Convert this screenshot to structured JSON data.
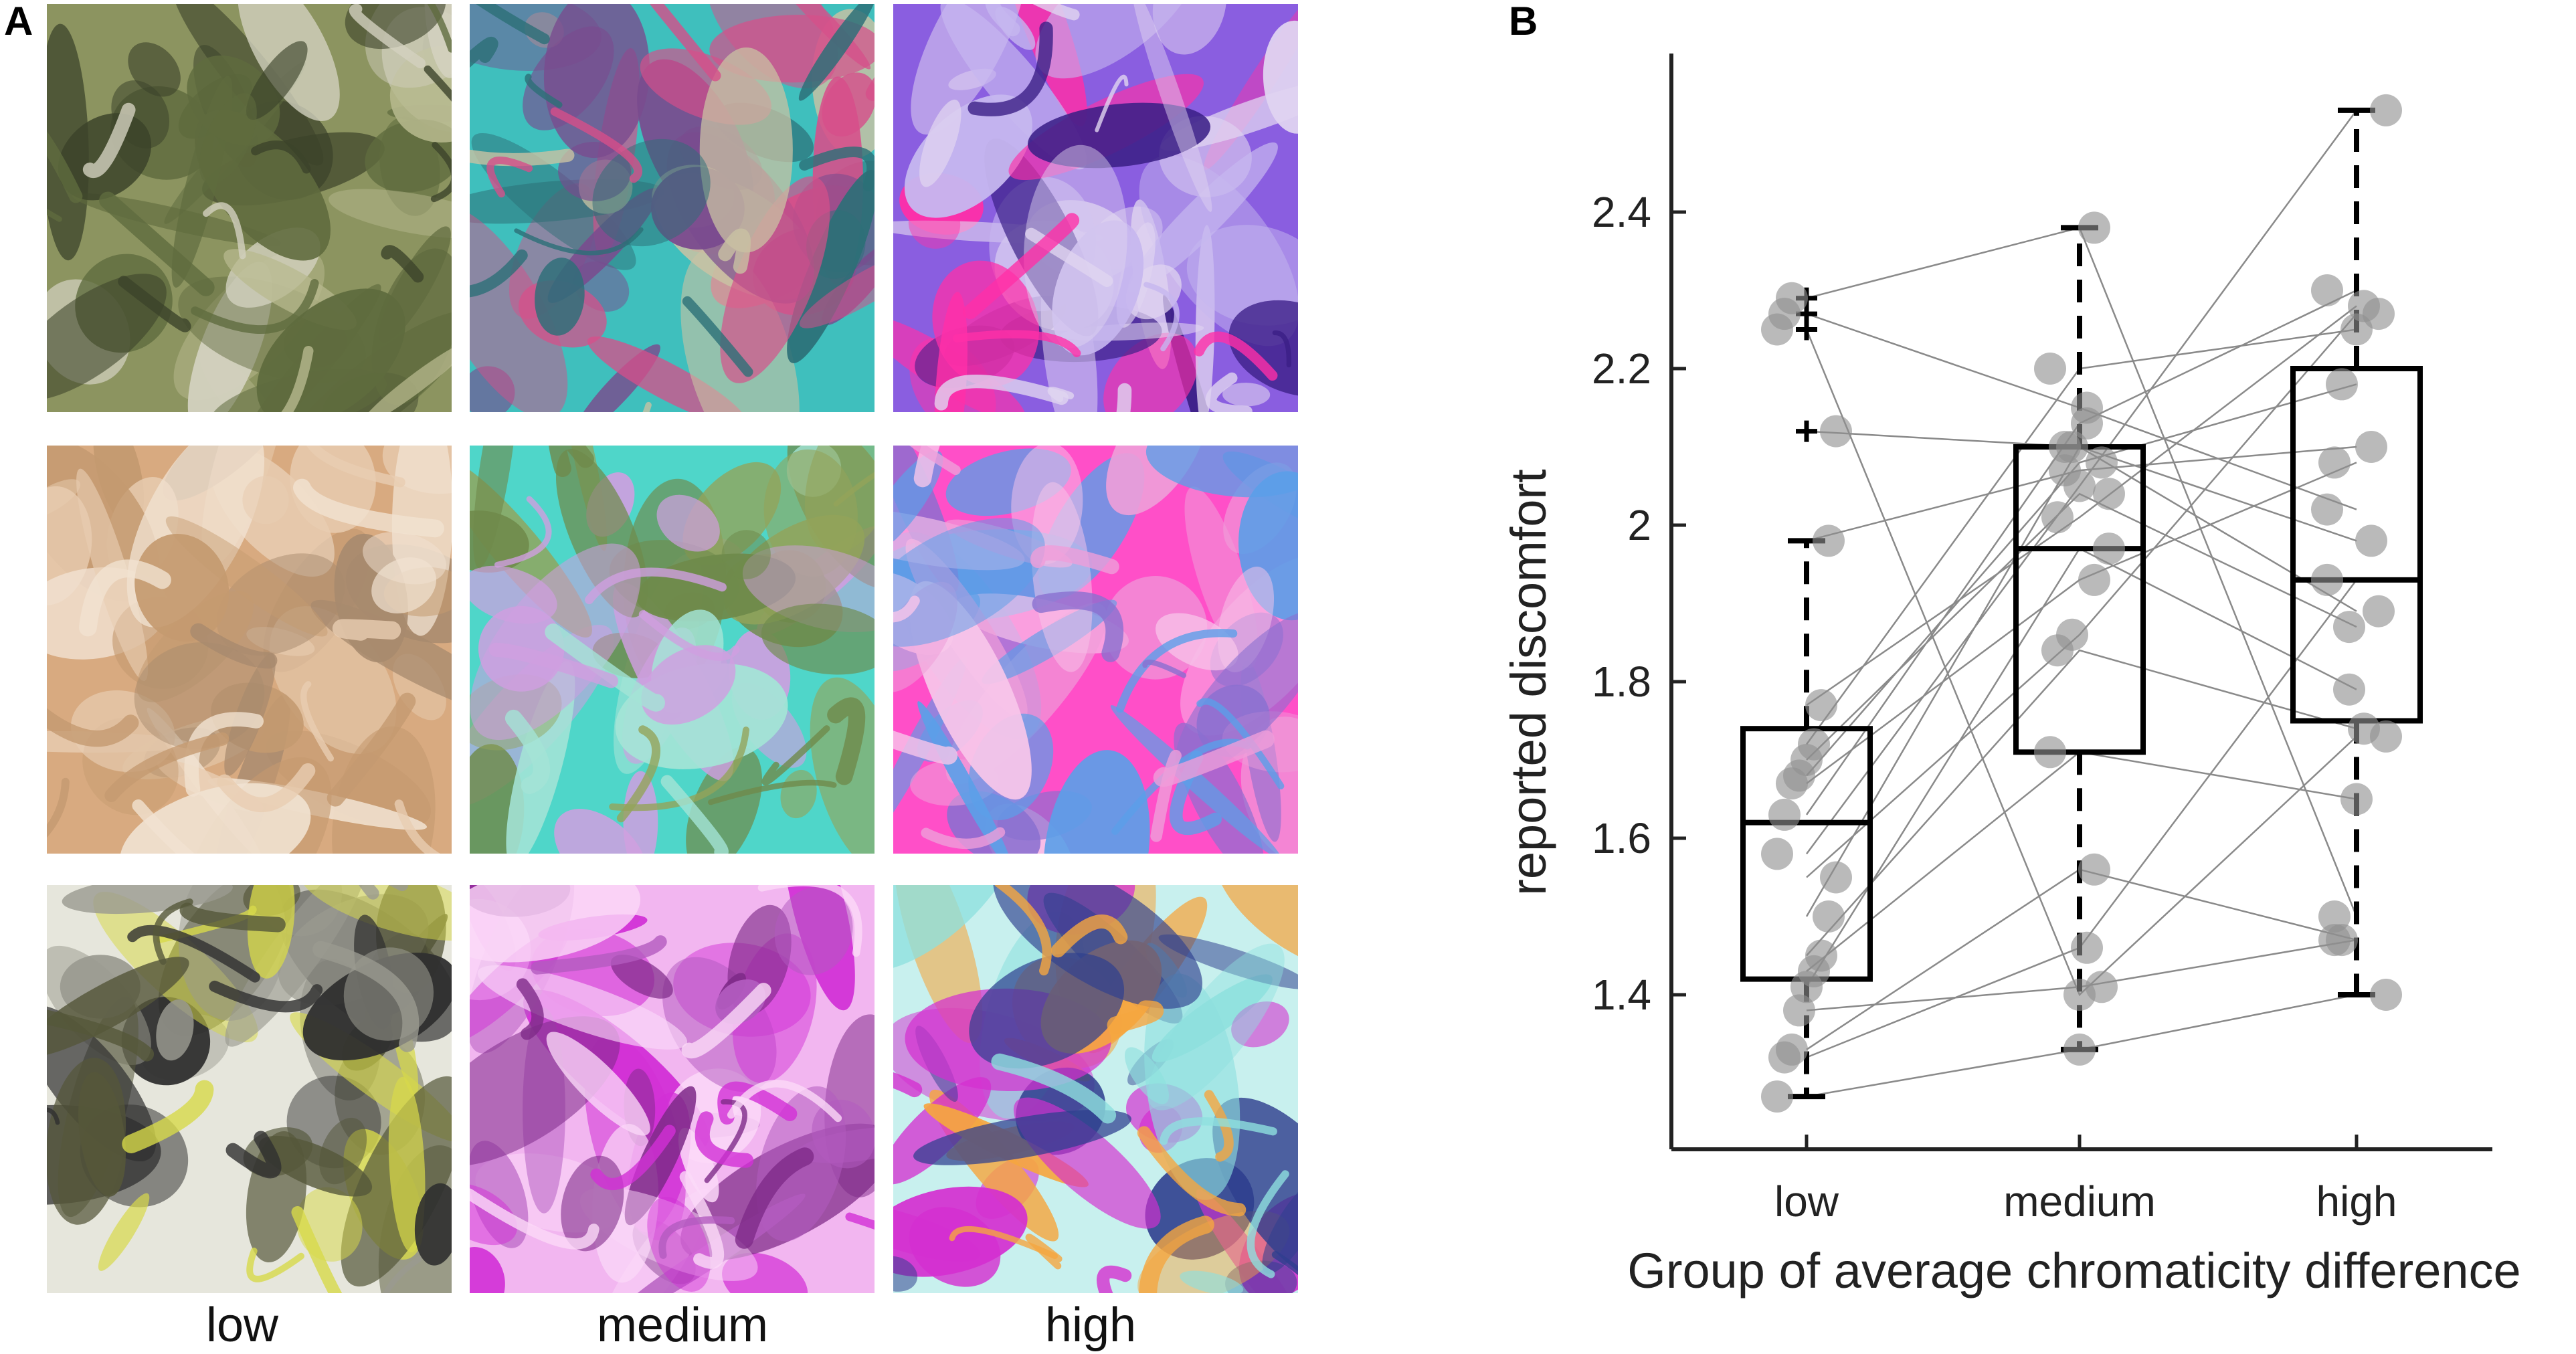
{
  "panel_a": {
    "label": "A",
    "columns": [
      "low",
      "medium",
      "high"
    ],
    "rows": [
      {
        "name": "abstract-painting-1",
        "palettes": [
          [
            "#8c9460",
            "#5f6b3e",
            "#b7b98e",
            "#3c432a",
            "#d3d1bf"
          ],
          [
            "#3fbfbd",
            "#d64f8a",
            "#7a4b8e",
            "#c9c2a3",
            "#2c6f77"
          ],
          [
            "#8a5ee0",
            "#ff2fa8",
            "#c6b7ef",
            "#3b1f86",
            "#e0d4f0"
          ]
        ]
      },
      {
        "name": "abstract-painting-2",
        "palettes": [
          [
            "#d8aa80",
            "#e8cdb2",
            "#a78a6e",
            "#c49a70",
            "#f1e2d1"
          ],
          [
            "#4fd6c9",
            "#93a45a",
            "#cf9fe0",
            "#6f8a4b",
            "#a4e4d6"
          ],
          [
            "#ff4fc8",
            "#5b9fe8",
            "#ef9ed9",
            "#8a6fd0",
            "#f8c6ea"
          ]
        ]
      },
      {
        "name": "abstract-painting-3",
        "palettes": [
          [
            "#e6e6dc",
            "#55573a",
            "#d7d94a",
            "#9a9a90",
            "#2f2f2f"
          ],
          [
            "#f2b6f0",
            "#d22fd6",
            "#7e2a88",
            "#fbd9f8",
            "#b35bbf"
          ],
          [
            "#c8f0ee",
            "#d42fd0",
            "#2f3f8e",
            "#f5a640",
            "#8ee0de"
          ]
        ]
      }
    ]
  },
  "chart_data": {
    "type": "box",
    "panel_label": "B",
    "title": "",
    "categories": [
      "low",
      "medium",
      "high"
    ],
    "xlabel": "Group of average chromaticity difference",
    "ylabel": "reported discomfort",
    "ylim": [
      1.22,
      2.6
    ],
    "yticks": [
      1.4,
      1.6,
      1.8,
      2.0,
      2.2,
      2.4
    ],
    "ytick_labels": [
      "1.4",
      "1.6",
      "1.8",
      "2",
      "2.2",
      "2.4"
    ],
    "boxes": [
      {
        "category": "low",
        "q1": 1.42,
        "median": 1.62,
        "q3": 1.74,
        "whisker_low": 1.27,
        "whisker_high": 1.98,
        "outliers": [
          2.12,
          2.25,
          2.27,
          2.29
        ]
      },
      {
        "category": "medium",
        "q1": 1.71,
        "median": 1.97,
        "q3": 2.1,
        "whisker_low": 1.33,
        "whisker_high": 2.38,
        "outliers": []
      },
      {
        "category": "high",
        "q1": 1.75,
        "median": 1.93,
        "q3": 2.2,
        "whisker_low": 1.4,
        "whisker_high": 2.53,
        "outliers": []
      }
    ],
    "subjects": [
      [
        1.27,
        1.33,
        1.4
      ],
      [
        1.32,
        1.46,
        1.93
      ],
      [
        1.33,
        1.56,
        1.47
      ],
      [
        1.38,
        1.41,
        1.47
      ],
      [
        1.41,
        1.97,
        1.79
      ],
      [
        1.43,
        1.71,
        1.65
      ],
      [
        1.45,
        1.84,
        1.74
      ],
      [
        1.5,
        2.1,
        1.98
      ],
      [
        1.55,
        1.86,
        2.27
      ],
      [
        1.58,
        2.05,
        2.53
      ],
      [
        1.63,
        2.13,
        2.3
      ],
      [
        1.67,
        1.93,
        2.08
      ],
      [
        1.68,
        2.08,
        2.18
      ],
      [
        1.7,
        2.04,
        1.87
      ],
      [
        1.72,
        2.2,
        2.25
      ],
      [
        1.77,
        2.01,
        2.28
      ],
      [
        1.98,
        2.07,
        2.1
      ],
      [
        2.12,
        2.1,
        1.89
      ],
      [
        2.25,
        1.4,
        1.73
      ],
      [
        2.27,
        2.15,
        2.02
      ],
      [
        2.29,
        2.38,
        1.5
      ]
    ]
  }
}
